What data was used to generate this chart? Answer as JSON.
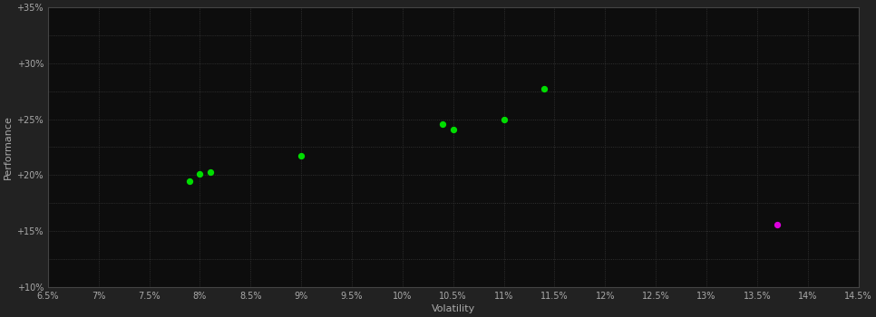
{
  "background_color": "#222222",
  "plot_bg_color": "#0d0d0d",
  "grid_color": "#3a3a3a",
  "text_color": "#aaaaaa",
  "xlabel": "Volatility",
  "ylabel": "Performance",
  "xlim": [
    0.065,
    0.145
  ],
  "ylim": [
    0.1,
    0.35
  ],
  "xticks": [
    0.065,
    0.07,
    0.075,
    0.08,
    0.085,
    0.09,
    0.095,
    0.1,
    0.105,
    0.11,
    0.115,
    0.12,
    0.125,
    0.13,
    0.135,
    0.14,
    0.145
  ],
  "yticks": [
    0.1,
    0.15,
    0.2,
    0.25,
    0.3,
    0.35
  ],
  "minor_yticks": [
    0.1,
    0.125,
    0.15,
    0.175,
    0.2,
    0.225,
    0.25,
    0.275,
    0.3,
    0.325,
    0.35
  ],
  "green_points": [
    [
      0.079,
      0.195
    ],
    [
      0.08,
      0.201
    ],
    [
      0.081,
      0.203
    ],
    [
      0.09,
      0.217
    ],
    [
      0.104,
      0.246
    ],
    [
      0.105,
      0.241
    ],
    [
      0.11,
      0.25
    ],
    [
      0.114,
      0.277
    ]
  ],
  "magenta_points": [
    [
      0.137,
      0.156
    ]
  ],
  "green_color": "#00dd00",
  "magenta_color": "#dd00dd",
  "dot_size": 18,
  "grid_linestyle": ":",
  "grid_linewidth": 0.6,
  "grid_alpha": 1.0,
  "figsize": [
    9.66,
    3.5
  ],
  "dpi": 100
}
